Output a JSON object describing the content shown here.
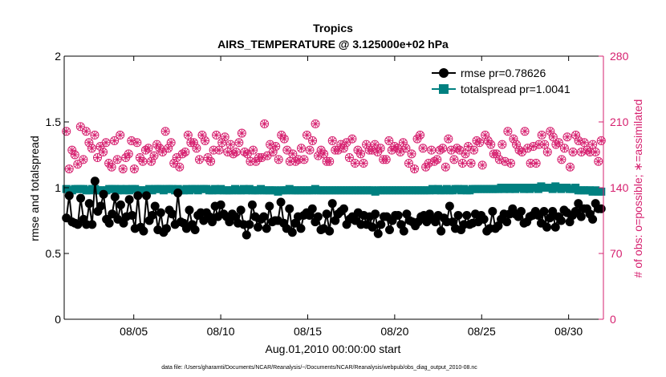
{
  "chart_data": {
    "type": "line",
    "title": "Tropics",
    "subtitle": "AIRS_TEMPERATURE @ 3.125000e+02 hPa",
    "xlabel": "Aug.01,2010 00:00:00 start",
    "ylabel": "rmse and totalspread",
    "ylabel_right": "# of obs: o=possible; ∗=assimilated",
    "xlim": [
      1,
      32
    ],
    "ylim": [
      0,
      2
    ],
    "ylim_right": [
      0,
      280
    ],
    "x_ticks": [
      5,
      10,
      15,
      20,
      25,
      30
    ],
    "x_tick_labels": [
      "08/05",
      "08/10",
      "08/15",
      "08/20",
      "08/25",
      "08/30"
    ],
    "y_ticks": [
      0,
      0.5,
      1,
      1.5,
      2
    ],
    "y_tick_labels": [
      "0",
      "0.5",
      "1",
      "1.5",
      "2"
    ],
    "y_right_ticks": [
      0,
      70,
      140,
      210,
      280
    ],
    "y_right_tick_labels": [
      "0",
      "70",
      "140",
      "210",
      "280"
    ],
    "legend_position": "top-right",
    "colors": {
      "rmse": "#000000",
      "totalspread": "#008080",
      "obs": "#d6206f"
    },
    "series": [
      {
        "name": "rmse pr=0.78626",
        "axis": "left",
        "marker": "circle",
        "values": [
          0.77,
          0.94,
          0.74,
          0.73,
          0.72,
          0.92,
          0.76,
          0.72,
          0.88,
          0.72,
          1.05,
          0.82,
          0.86,
          0.95,
          0.76,
          0.73,
          0.8,
          0.93,
          0.76,
          0.87,
          0.73,
          0.78,
          0.91,
          0.79,
          0.69,
          0.94,
          0.7,
          0.67,
          0.94,
          0.75,
          0.79,
          0.86,
          0.68,
          0.81,
          0.66,
          0.69,
          0.83,
          0.8,
          0.72,
          0.96,
          0.74,
          0.73,
          0.69,
          0.83,
          0.72,
          0.68,
          0.79,
          0.81,
          0.75,
          0.81,
          0.78,
          0.74,
          0.86,
          0.78,
          0.87,
          0.8,
          0.78,
          0.74,
          0.8,
          0.78,
          0.73,
          0.83,
          0.72,
          0.64,
          0.72,
          0.87,
          0.78,
          0.7,
          0.76,
          0.78,
          0.69,
          0.86,
          0.74,
          0.75,
          0.75,
          0.89,
          0.73,
          0.69,
          0.84,
          0.66,
          0.73,
          0.78,
          0.69,
          0.79,
          0.81,
          0.79,
          0.84,
          0.74,
          0.78,
          0.68,
          0.69,
          0.8,
          0.67,
          0.88,
          0.75,
          0.8,
          0.82,
          0.84,
          0.72,
          0.76,
          0.78,
          0.75,
          0.81,
          0.72,
          0.79,
          0.72,
          0.78,
          0.7,
          0.8,
          0.65,
          0.72,
          0.78,
          0.78,
          0.68,
          0.75,
          0.79,
          0.79,
          0.72,
          0.67,
          0.8,
          0.75,
          0.74,
          0.71,
          0.74,
          0.78,
          0.79,
          0.74,
          0.8,
          0.76,
          0.74,
          0.79,
          0.67,
          0.77,
          0.74,
          0.86,
          0.74,
          0.69,
          0.79,
          0.68,
          0.72,
          0.79,
          0.72,
          0.73,
          0.8,
          0.74,
          0.79,
          0.76,
          0.67,
          0.69,
          0.82,
          0.69,
          0.71,
          0.76,
          0.8,
          0.74,
          0.8,
          0.84,
          0.8,
          0.78,
          0.82,
          0.73,
          0.74,
          0.78,
          0.79,
          0.82,
          0.79,
          0.73,
          0.82,
          0.7,
          0.77,
          0.82,
          0.7,
          0.78,
          0.75,
          0.83,
          0.81,
          0.74,
          0.79,
          0.82,
          0.88,
          0.78,
          0.84,
          0.84,
          0.8,
          0.76,
          0.88,
          0.84,
          0.84
        ]
      },
      {
        "name": "totalspread pr=1.0041",
        "axis": "left",
        "marker": "square",
        "values": [
          0.99,
          0.98,
          0.98,
          0.99,
          0.99,
          0.99,
          0.99,
          0.98,
          0.98,
          0.99,
          0.99,
          0.98,
          0.98,
          0.98,
          0.98,
          0.99,
          0.99,
          0.99,
          0.98,
          0.99,
          0.98,
          0.99,
          0.98,
          0.99,
          0.99,
          0.98,
          0.98,
          0.98,
          0.98,
          0.99,
          0.98,
          0.99,
          0.99,
          0.99,
          0.98,
          0.99,
          0.99,
          0.99,
          0.98,
          0.99,
          0.98,
          0.98,
          0.99,
          0.98,
          0.99,
          0.99,
          0.98,
          0.99,
          0.99,
          0.99,
          0.98,
          0.98,
          0.99,
          0.98,
          0.99,
          0.98,
          0.98,
          0.98,
          0.98,
          0.99,
          0.98,
          0.98,
          0.99,
          0.98,
          0.99,
          0.98,
          0.98,
          0.98,
          0.99,
          0.98,
          0.98,
          0.98,
          0.98,
          0.98,
          0.97,
          0.98,
          0.98,
          0.98,
          0.99,
          0.98,
          0.98,
          0.98,
          0.98,
          0.98,
          0.98,
          0.98,
          0.98,
          0.99,
          0.98,
          0.98,
          0.98,
          0.98,
          0.98,
          0.98,
          0.98,
          0.98,
          0.98,
          0.98,
          0.98,
          0.98,
          0.98,
          0.98,
          0.98,
          0.98,
          0.98,
          0.98,
          0.98,
          0.98,
          0.97,
          0.98,
          0.98,
          0.98,
          0.98,
          0.98,
          0.98,
          0.98,
          0.98,
          0.98,
          0.98,
          0.98,
          0.98,
          0.98,
          0.98,
          0.98,
          0.98,
          0.98,
          0.98,
          0.98,
          0.99,
          0.98,
          0.99,
          0.98,
          0.98,
          0.99,
          0.98,
          0.98,
          0.99,
          0.99,
          0.98,
          0.99,
          0.98,
          0.98,
          0.99,
          0.99,
          0.99,
          0.99,
          0.99,
          0.99,
          0.99,
          0.99,
          0.99,
          0.99,
          1.0,
          0.99,
          1.0,
          0.99,
          1.0,
          0.99,
          1.0,
          1.0,
          0.99,
          1.0,
          0.99,
          1.0,
          1.0,
          0.99,
          1.01,
          1.0,
          1.0,
          1.0,
          0.99,
          1.01,
          1.0,
          0.99,
          1.0,
          1.0,
          0.99,
          0.99,
          1.0,
          0.98,
          0.98,
          0.98,
          0.98,
          0.98,
          0.97,
          0.98,
          0.97,
          0.97
        ]
      },
      {
        "name": "obs possible",
        "axis": "right",
        "marker": "circle-open",
        "values": [
          200,
          160,
          180,
          175,
          165,
          205,
          170,
          200,
          188,
          182,
          196,
          172,
          184,
          178,
          188,
          166,
          162,
          190,
          170,
          196,
          160,
          172,
          176,
          190,
          160,
          188,
          172,
          168,
          180,
          182,
          168,
          174,
          186,
          182,
          178,
          200,
          182,
          188,
          166,
          172,
          162,
          176,
          178,
          196,
          188,
          188,
          182,
          170,
          196,
          190,
          172,
          168,
          180,
          196,
          180,
          188,
          194,
          178,
          186,
          176,
          178,
          188,
          198,
          178,
          176,
          168,
          180,
          168,
          172,
          172,
          208,
          174,
          186,
          178,
          184,
          170,
          196,
          192,
          180,
          168,
          176,
          168,
          170,
          182,
          170,
          196,
          180,
          190,
          208,
          174,
          180,
          176,
          168,
          168,
          190,
          180,
          180,
          186,
          182,
          188,
          172,
          192,
          166,
          180,
          176,
          166,
          186,
          180,
          180,
          186,
          178,
          182,
          170,
          170,
          190,
          180,
          184,
          182,
          178,
          188,
          182,
          166,
          176,
          160,
          192,
          196,
          182,
          162,
          166,
          180,
          168,
          170,
          180,
          182,
          162,
          192,
          180,
          170,
          182,
          180,
          166,
          176,
          184,
          166,
          180,
          190,
          188,
          164,
          196,
          190,
          186,
          176,
          176,
          170,
          186,
          168,
          200,
          166,
          192,
          186,
          180,
          178,
          200,
          182,
          166,
          184,
          166,
          186,
          196,
          186,
          178,
          200,
          194,
          186,
          188,
          170,
          182,
          194,
          162,
          178,
          196,
          190,
          178,
          188,
          180,
          178,
          186,
          178,
          168,
          190
        ]
      },
      {
        "name": "obs assimilated",
        "axis": "right",
        "marker": "asterisk",
        "values": [
          200,
          160,
          180,
          175,
          165,
          205,
          170,
          200,
          188,
          182,
          196,
          172,
          184,
          178,
          188,
          166,
          162,
          190,
          170,
          196,
          160,
          172,
          176,
          190,
          160,
          188,
          172,
          168,
          180,
          182,
          168,
          174,
          186,
          182,
          178,
          200,
          182,
          188,
          166,
          172,
          162,
          176,
          178,
          196,
          188,
          188,
          182,
          170,
          196,
          190,
          172,
          168,
          180,
          196,
          180,
          188,
          194,
          178,
          186,
          176,
          178,
          188,
          198,
          178,
          176,
          168,
          180,
          168,
          172,
          172,
          208,
          174,
          186,
          178,
          184,
          170,
          196,
          192,
          180,
          168,
          176,
          168,
          170,
          182,
          170,
          196,
          180,
          190,
          208,
          174,
          180,
          176,
          168,
          168,
          190,
          180,
          180,
          186,
          182,
          188,
          172,
          192,
          166,
          180,
          176,
          166,
          186,
          180,
          180,
          186,
          178,
          182,
          170,
          170,
          190,
          180,
          184,
          182,
          178,
          188,
          182,
          166,
          176,
          160,
          192,
          196,
          182,
          162,
          166,
          180,
          168,
          170,
          180,
          182,
          162,
          192,
          180,
          170,
          182,
          180,
          166,
          176,
          184,
          166,
          180,
          190,
          188,
          164,
          196,
          190,
          186,
          176,
          176,
          170,
          186,
          168,
          200,
          166,
          192,
          186,
          180,
          178,
          200,
          182,
          166,
          184,
          166,
          186,
          196,
          186,
          178,
          200,
          194,
          186,
          188,
          170,
          182,
          194,
          162,
          178,
          196,
          190,
          178,
          188,
          180,
          178,
          186,
          178,
          168,
          190
        ]
      }
    ],
    "footnote": "data file: /Users/gharamti/Documents/NCAR/Reanalysis/~/Documents/NCAR/Reanalysis/webpub/obs_diag_output_2010-08.nc"
  }
}
